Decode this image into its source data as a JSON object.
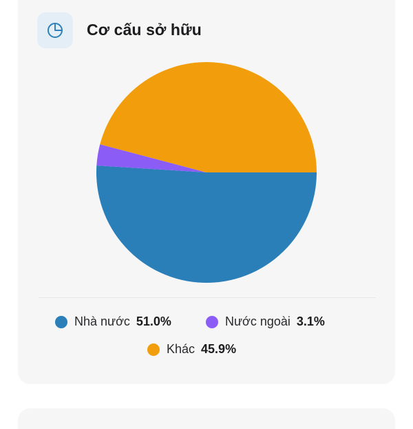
{
  "header": {
    "title": "Cơ cấu sở hữu",
    "icon": "pie-chart-icon",
    "icon_color": "#2f80b9"
  },
  "chart_data": {
    "type": "pie",
    "title": "Cơ cấu sở hữu",
    "slices": [
      {
        "label": "Nhà nước",
        "value": 51.0,
        "display": "51.0%",
        "color": "#2a7fb8"
      },
      {
        "label": "Nước ngoài",
        "value": 3.1,
        "display": "3.1%",
        "color": "#8b5cf6"
      },
      {
        "label": "Khác",
        "value": 45.9,
        "display": "45.9%",
        "color": "#f29e0c"
      }
    ],
    "legend_position": "bottom"
  }
}
